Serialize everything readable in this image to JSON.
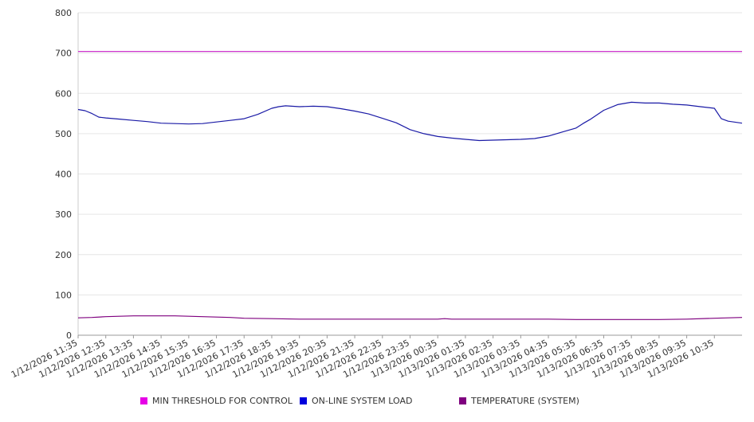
{
  "chart_data": {
    "type": "line",
    "title": "",
    "xlabel": "",
    "ylabel": "",
    "ylim": [
      0,
      800
    ],
    "yticks": [
      0,
      100,
      200,
      300,
      400,
      500,
      600,
      700,
      800
    ],
    "grid": true,
    "legend_position": "bottom",
    "xtick_labels": [
      "1/12/2026 11:35",
      "1/12/2026 12:35",
      "1/12/2026 13:35",
      "1/12/2026 14:35",
      "1/12/2026 15:35",
      "1/12/2026 16:35",
      "1/12/2026 17:35",
      "1/12/2026 18:35",
      "1/12/2026 19:35",
      "1/12/2026 20:35",
      "1/12/2026 21:35",
      "1/12/2026 22:35",
      "1/12/2026 23:35",
      "1/13/2026 00:35",
      "1/13/2026 01:35",
      "1/13/2026 02:35",
      "1/13/2026 03:35",
      "1/13/2026 04:35",
      "1/13/2026 05:35",
      "1/13/2026 06:35",
      "1/13/2026 07:35",
      "1/13/2026 08:35",
      "1/13/2026 09:35",
      "1/13/2026 10:35"
    ],
    "x_range": [
      "1/12/2026 11:35",
      "1/13/2026 11:35"
    ],
    "series": [
      {
        "name": "MIN THRESHOLD FOR CONTROL",
        "color": "#e600e6",
        "line_color": "#cc33cc",
        "points": [
          [
            0,
            704
          ],
          [
            24,
            704
          ]
        ]
      },
      {
        "name": "ON-LINE SYSTEM LOAD",
        "color": "#0000dd",
        "line_color": "#1a1aa6",
        "points": [
          [
            0,
            560
          ],
          [
            0.25,
            557
          ],
          [
            0.5,
            550
          ],
          [
            0.75,
            541
          ],
          [
            1,
            539
          ],
          [
            1.5,
            536
          ],
          [
            2,
            533
          ],
          [
            2.5,
            530
          ],
          [
            3,
            526
          ],
          [
            3.5,
            525
          ],
          [
            4,
            524
          ],
          [
            4.5,
            525
          ],
          [
            5,
            529
          ],
          [
            5.5,
            533
          ],
          [
            6,
            537
          ],
          [
            6.5,
            548
          ],
          [
            7,
            563
          ],
          [
            7.25,
            567
          ],
          [
            7.5,
            569
          ],
          [
            8,
            567
          ],
          [
            8.5,
            568
          ],
          [
            9,
            567
          ],
          [
            9.5,
            562
          ],
          [
            10,
            556
          ],
          [
            10.5,
            549
          ],
          [
            11,
            538
          ],
          [
            11.5,
            527
          ],
          [
            12,
            510
          ],
          [
            12.5,
            500
          ],
          [
            13,
            493
          ],
          [
            13.5,
            489
          ],
          [
            14,
            486
          ],
          [
            14.5,
            483
          ],
          [
            15,
            484
          ],
          [
            15.5,
            485
          ],
          [
            16,
            486
          ],
          [
            16.5,
            488
          ],
          [
            17,
            494
          ],
          [
            17.5,
            504
          ],
          [
            18,
            514
          ],
          [
            18.25,
            525
          ],
          [
            18.5,
            535
          ],
          [
            19,
            558
          ],
          [
            19.5,
            572
          ],
          [
            20,
            578
          ],
          [
            20.5,
            576
          ],
          [
            21,
            576
          ],
          [
            21.5,
            573
          ],
          [
            22,
            571
          ],
          [
            22.5,
            567
          ],
          [
            23,
            563
          ],
          [
            23.25,
            537
          ],
          [
            23.5,
            531
          ],
          [
            24,
            526
          ]
        ]
      },
      {
        "name": "TEMPERATURE (SYSTEM)",
        "color": "#7f007f",
        "line_color": "#7f007f",
        "points": [
          [
            0,
            43
          ],
          [
            0.5,
            44
          ],
          [
            1,
            46
          ],
          [
            1.5,
            47
          ],
          [
            2,
            48
          ],
          [
            2.5,
            48
          ],
          [
            3,
            48
          ],
          [
            3.5,
            48
          ],
          [
            4,
            47
          ],
          [
            4.5,
            46
          ],
          [
            5,
            45
          ],
          [
            5.5,
            44
          ],
          [
            6,
            42
          ],
          [
            7,
            41
          ],
          [
            8,
            40
          ],
          [
            9,
            40
          ],
          [
            10,
            40
          ],
          [
            11,
            40
          ],
          [
            12,
            40
          ],
          [
            13,
            40
          ],
          [
            13.25,
            41
          ],
          [
            13.5,
            40
          ],
          [
            14,
            40
          ],
          [
            15,
            40
          ],
          [
            16,
            40
          ],
          [
            17,
            40
          ],
          [
            18,
            39
          ],
          [
            19,
            39
          ],
          [
            20,
            39
          ],
          [
            21,
            39
          ],
          [
            22,
            40
          ],
          [
            23,
            42
          ],
          [
            24,
            44
          ]
        ]
      }
    ]
  }
}
